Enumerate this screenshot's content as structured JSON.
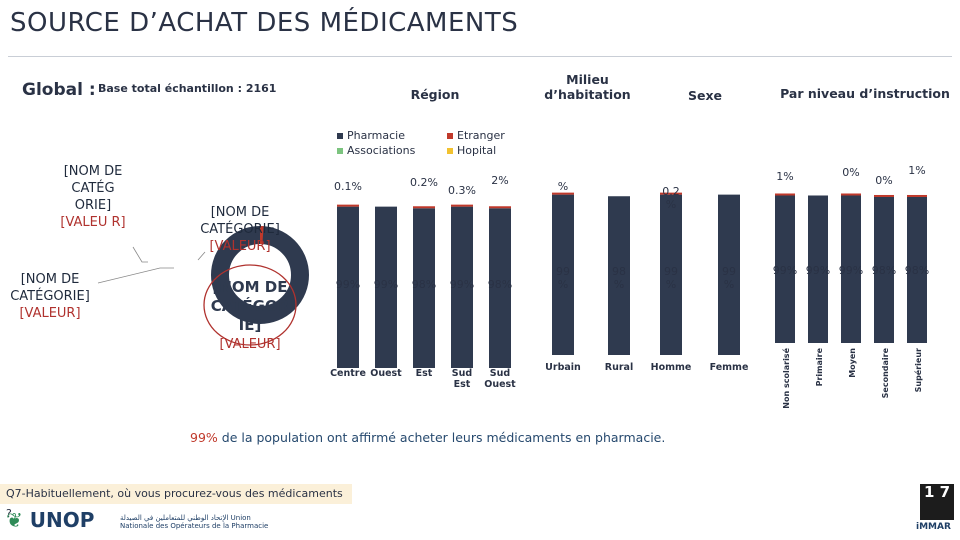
{
  "title": "SOURCE D’ACHAT DES MÉDICAMENTS",
  "global": {
    "label": "Global :",
    "sample": "Base total échantillon : 2161"
  },
  "sections": {
    "region": "Région",
    "milieu": "Milieu d’habitation",
    "sexe": "Sexe",
    "niveau": "Par niveau d’instruction"
  },
  "legend": [
    {
      "name": "Pharmacie",
      "color": "#2f3a4f"
    },
    {
      "name": "Etranger",
      "color": "#c0392b"
    },
    {
      "name": "Associations",
      "color": "#7cc47f"
    },
    {
      "name": "Hopital",
      "color": "#f2c230"
    }
  ],
  "donut": {
    "labels": [
      {
        "name": "[NOM DE CATÉG ORIE]",
        "value": "[VALEU R]"
      },
      {
        "name": "[NOM DE CATÉGORIE]",
        "value": "[VALEUR]"
      },
      {
        "name": "[NOM DE CATÉGORIE]",
        "value": "[VALEUR]"
      },
      {
        "name": "[NOM DE CATÉGOR IE]",
        "value": "[VALEUR]"
      }
    ]
  },
  "chart_data": [
    {
      "type": "bar",
      "title": "Région",
      "categories": [
        "Centre",
        "Ouest",
        "Est",
        "Sud Est",
        "Sud Ouest"
      ],
      "series": [
        {
          "name": "Pharmacie",
          "values": [
            99,
            99,
            98,
            99,
            98
          ]
        }
      ],
      "bar_labels": [
        "99%",
        "99%",
        "98%",
        "99%",
        "98%"
      ],
      "top_labels": [
        "0.1%",
        "",
        "0.2%",
        "0.3%",
        "2%"
      ]
    },
    {
      "type": "bar",
      "title": "Milieu d’habitation",
      "categories": [
        "Urbain",
        "Rural"
      ],
      "series": [
        {
          "name": "Pharmacie",
          "values": [
            99,
            98
          ]
        }
      ],
      "bar_labels": [
        "99 %",
        "98 %"
      ],
      "top_labels": [
        "%",
        ""
      ]
    },
    {
      "type": "bar",
      "title": "Sexe",
      "categories": [
        "Homme",
        "Femme"
      ],
      "series": [
        {
          "name": "Pharmacie",
          "values": [
            99,
            99
          ]
        }
      ],
      "bar_labels": [
        "99 %",
        "99 %"
      ],
      "top_labels": [
        "0.2 %",
        ""
      ]
    },
    {
      "type": "bar",
      "title": "Par niveau d’instruction",
      "categories": [
        "Non scolarisé",
        "Primaire",
        "Moyen",
        "Secondaire",
        "Supérieur"
      ],
      "series": [
        {
          "name": "Pharmacie",
          "values": [
            99,
            99,
            99,
            98,
            98
          ]
        }
      ],
      "bar_labels": [
        "99%",
        "99%",
        "99%",
        "98%",
        "98%"
      ],
      "top_labels": [
        "1%",
        "",
        "0%",
        "0%",
        "1%"
      ]
    }
  ],
  "statement": {
    "pct": "99%",
    "text": " de la population ont affirmé acheter leurs médicaments en pharmacie."
  },
  "question": "Q7-Habituellement, où vous procurez-vous des médicaments ?",
  "page_number": "1 7",
  "footer": {
    "logo_text": "UNOP",
    "logo_ar": "الإتحاد الوطني للمتعاملين في الصيدلة Union Nationale des Opérateurs de la Pharmacie",
    "brand": "iMMAR"
  }
}
